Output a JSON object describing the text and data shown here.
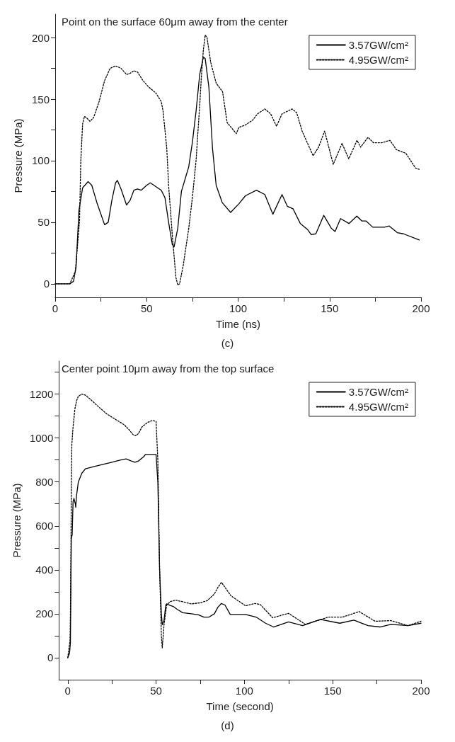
{
  "chart_data": [
    {
      "type": "line",
      "title": "Point on the surface 60μm away from the center",
      "xlabel": "Time (ns)",
      "ylabel": "Pressure (MPa)",
      "annotations": [
        "(c)"
      ],
      "xlim": [
        0,
        200
      ],
      "ylim": [
        -11,
        219
      ],
      "xticks": [
        0,
        {
          "value": 25,
          "label": null
        },
        50,
        {
          "value": 75,
          "label": null
        },
        100,
        {
          "value": 125,
          "label": null
        },
        150,
        {
          "value": 175,
          "label": null
        },
        200
      ],
      "yticks": [
        0,
        {
          "value": 25,
          "label": null
        },
        50,
        {
          "value": 75,
          "label": null
        },
        100,
        {
          "value": 125,
          "label": null
        },
        150,
        {
          "value": 175,
          "label": null
        },
        200
      ],
      "grid": false,
      "legend": "top right",
      "marker": "none",
      "series": [
        {
          "name": "3.57GW/cm²",
          "color": "#000000",
          "line_style": "solid",
          "x": [
            0,
            8,
            10,
            11.4,
            13,
            15,
            18,
            20,
            23,
            27,
            29,
            31,
            33,
            34,
            36,
            39,
            41,
            43,
            45,
            47,
            50,
            52,
            55,
            58,
            60,
            62,
            64,
            65,
            67,
            69,
            71,
            73,
            75,
            77,
            79,
            81,
            82,
            84,
            86,
            88,
            91.3,
            95.9,
            100.4,
            104,
            110,
            114.6,
            119,
            124,
            126.9,
            130,
            134,
            138,
            140,
            142.5,
            146.8,
            151,
            153,
            156,
            160.6,
            164.9,
            167.7,
            170,
            173.6,
            180,
            182.6,
            187,
            190.4,
            199
          ],
          "values": [
            0,
            0,
            2,
            13.5,
            60,
            78,
            83,
            80,
            65,
            48,
            50,
            68,
            82,
            84,
            77,
            64,
            68,
            76,
            77,
            76,
            80,
            82,
            79,
            76,
            70,
            50,
            32,
            30,
            45,
            75,
            85,
            95,
            115,
            140,
            170,
            184,
            183,
            160,
            110,
            80,
            66,
            58,
            65,
            71.5,
            76,
            72.5,
            56.5,
            72.5,
            63,
            61,
            49,
            44,
            40,
            40.6,
            55.6,
            45,
            42.5,
            53,
            49,
            55,
            51,
            51,
            46,
            46,
            47,
            41.6,
            40.6,
            35.6
          ]
        },
        {
          "name": "4.95GW/cm²",
          "color": "#000000",
          "line_style": "dotted",
          "x": [
            0,
            8,
            11,
            13.3,
            14,
            15,
            16,
            17,
            19,
            21,
            24,
            27,
            30,
            33,
            36,
            39,
            41,
            43,
            45,
            48,
            51,
            55,
            58,
            59,
            61,
            62,
            64,
            66,
            67,
            68,
            70,
            73,
            75,
            77,
            79,
            80,
            81,
            82,
            83,
            85,
            88,
            91.5,
            94,
            99,
            100.4,
            104,
            108,
            110.6,
            114.6,
            117.8,
            121,
            124,
            129.5,
            132,
            135,
            141,
            144,
            147.3,
            152,
            156.8,
            160.5,
            165,
            167,
            171,
            174,
            178.6,
            183,
            186.5,
            191.7,
            197,
            199
          ],
          "values": [
            0,
            0,
            10,
            51,
            100,
            130,
            136,
            135,
            132,
            135,
            148,
            165,
            175,
            177,
            175,
            170,
            171,
            173,
            172,
            165,
            160,
            155,
            148,
            140,
            110,
            80,
            40,
            5,
            -1,
            0,
            15,
            45,
            70,
            100,
            145,
            170,
            190,
            202,
            200,
            180,
            163,
            156,
            131,
            122,
            127,
            129,
            133,
            138,
            142,
            138,
            128,
            138,
            142,
            139,
            124,
            104,
            111,
            124,
            97,
            114,
            101.5,
            116.5,
            111,
            119,
            114.6,
            114.6,
            116.5,
            109,
            106,
            94,
            93
          ]
        }
      ]
    },
    {
      "type": "line",
      "title": "Center point 10μm away from the top surface",
      "xlabel": "Time (second)",
      "ylabel": "Pressure (MPa)",
      "annotations": [
        "(d)"
      ],
      "xlim": [
        -5,
        200
      ],
      "ylim": [
        -100,
        1350
      ],
      "xticks": [
        0,
        {
          "value": 25,
          "label": null
        },
        50,
        {
          "value": 75,
          "label": null
        },
        100,
        {
          "value": 125,
          "label": null
        },
        150,
        {
          "value": 175,
          "label": null
        },
        200
      ],
      "yticks": [
        0,
        {
          "value": 100,
          "label": null
        },
        200,
        {
          "value": 300,
          "label": null
        },
        400,
        {
          "value": 500,
          "label": null
        },
        600,
        {
          "value": 700,
          "label": null
        },
        800,
        {
          "value": 900,
          "label": null
        },
        1000,
        {
          "value": 1100,
          "label": null
        },
        1200,
        {
          "value": 1300,
          "label": null
        }
      ],
      "grid": false,
      "legend": "top right",
      "marker": "none",
      "series": [
        {
          "name": "3.57GW/cm²",
          "color": "#000000",
          "line_style": "solid",
          "x": [
            0,
            1,
            1.5,
            2,
            2.5,
            3,
            3.5,
            4.3,
            4.5,
            5,
            6,
            8,
            10,
            15,
            20,
            25,
            30,
            33,
            36,
            38,
            40,
            43,
            44,
            50,
            51,
            52,
            53,
            53.5,
            54.5,
            55.5,
            56,
            58,
            60,
            62,
            65,
            70,
            74,
            77,
            80,
            83,
            85,
            87,
            89,
            92,
            100.7,
            106.6,
            112,
            116.5,
            125,
            133,
            143,
            154,
            162,
            170,
            176.7,
            183,
            192.6,
            200
          ],
          "values": [
            0,
            20,
            67,
            540,
            560,
            710,
            725,
            700,
            685,
            740,
            800,
            840,
            860,
            870,
            880,
            890,
            900,
            905,
            895,
            890,
            895,
            915,
            925,
            925,
            800,
            400,
            200,
            150,
            170,
            240,
            245,
            238,
            232,
            220,
            205,
            200,
            195,
            185,
            185,
            200,
            230,
            247,
            240,
            197,
            197,
            185,
            157,
            140,
            163,
            146,
            174,
            157,
            171,
            146,
            140,
            152,
            146,
            157
          ]
        },
        {
          "name": "4.95GW/cm²",
          "color": "#000000",
          "line_style": "dotted",
          "x": [
            0,
            1.3,
            1.5,
            2,
            2.3,
            3,
            4,
            5,
            6,
            8,
            10,
            13,
            17,
            22,
            27,
            32,
            35,
            37,
            38.5,
            40,
            42,
            45,
            48,
            50,
            51,
            52,
            53,
            53.5,
            54.5,
            56,
            58,
            61,
            65,
            70,
            75,
            79,
            83,
            85,
            87,
            92.5,
            100.7,
            106,
            109,
            116,
            125,
            134.5,
            147.7,
            155.6,
            165,
            174,
            183,
            192.6,
            200
          ],
          "values": [
            0,
            80,
            200,
            700,
            970,
            1050,
            1130,
            1170,
            1190,
            1200,
            1195,
            1175,
            1145,
            1110,
            1085,
            1060,
            1035,
            1015,
            1010,
            1020,
            1050,
            1070,
            1080,
            1075,
            900,
            400,
            100,
            45,
            150,
            240,
            255,
            262,
            255,
            245,
            250,
            260,
            290,
            320,
            343,
            281,
            236,
            247,
            242,
            182,
            202,
            152,
            185,
            185,
            210,
            166,
            169,
            146,
            166
          ]
        }
      ]
    }
  ]
}
